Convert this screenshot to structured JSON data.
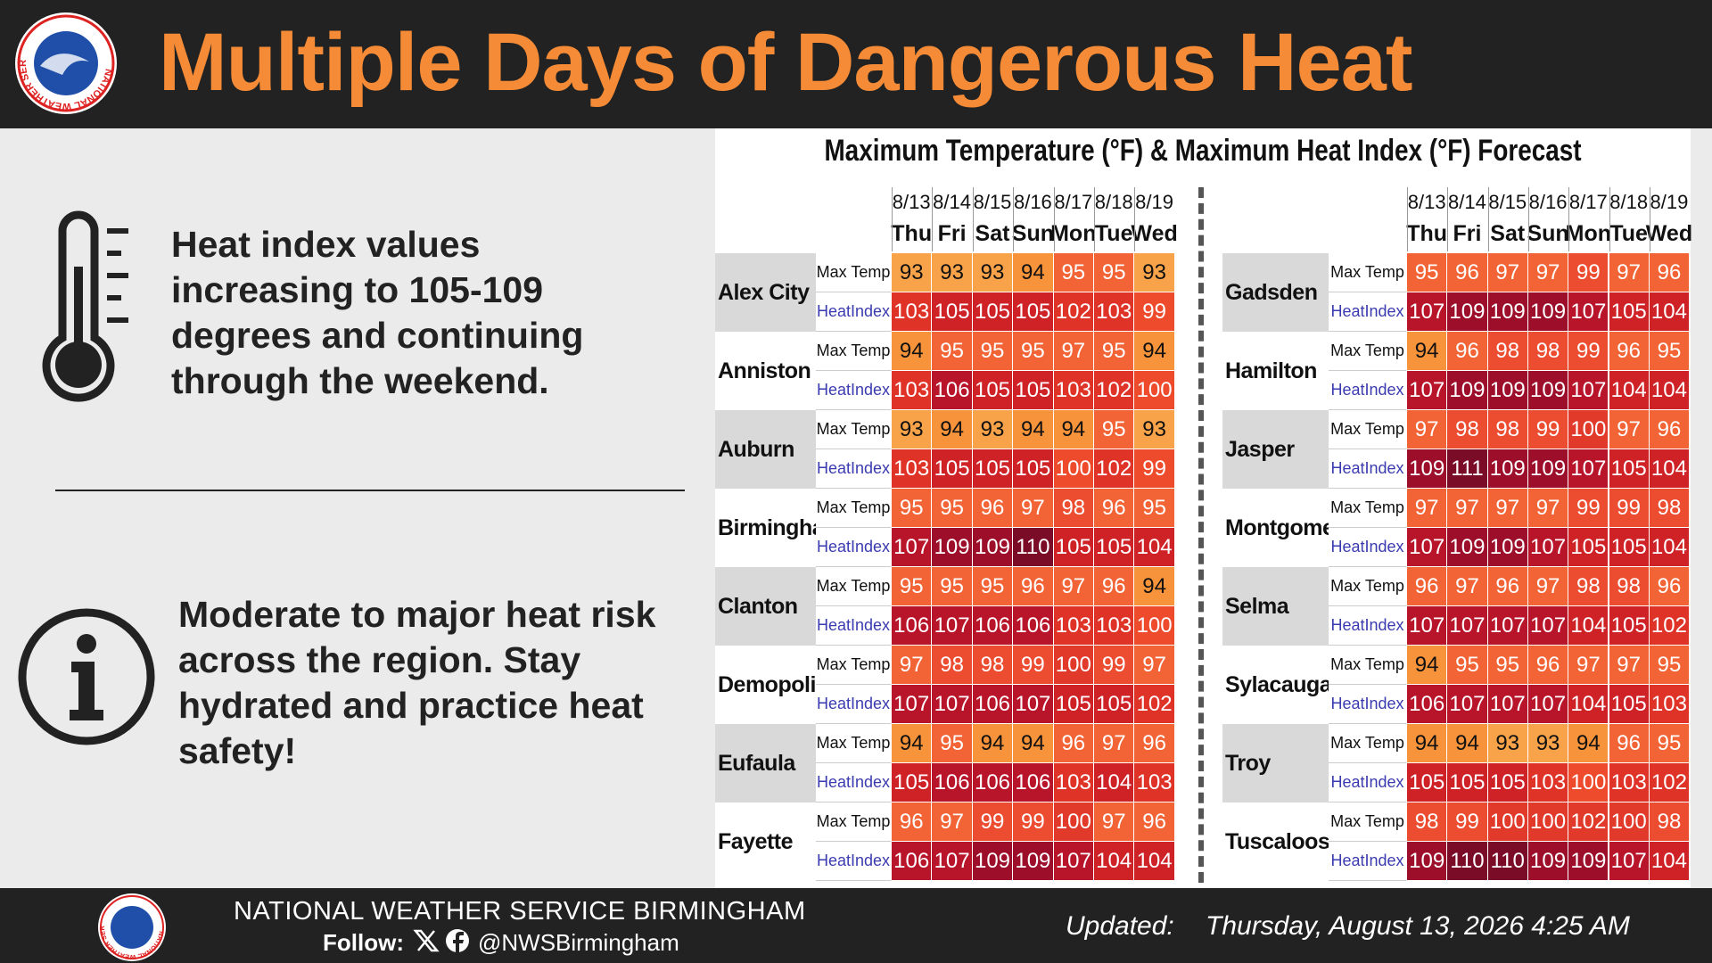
{
  "header": {
    "title": "Multiple Days of Dangerous Heat",
    "logo_text": "NATIONAL WEATHER SERVICE"
  },
  "panel": {
    "message_1": "Heat index values increasing to 105-109 degrees and continuing through the weekend.",
    "message_2": "Moderate to major heat risk across the region. Stay hydrated and practice heat safety!"
  },
  "table": {
    "title": "Maximum Temperature (°F) & Maximum Heat Index (°F) Forecast",
    "dates": [
      "8/13",
      "8/14",
      "8/15",
      "8/16",
      "8/17",
      "8/18",
      "8/19"
    ],
    "days": [
      "Thu",
      "Fri",
      "Sat",
      "Sun",
      "Mon",
      "Tue",
      "Wed"
    ],
    "row_labels": [
      "Max Temp",
      "HeatIndex"
    ],
    "cities": [
      {
        "name": "Alex City",
        "max_temp": [
          93,
          93,
          93,
          94,
          95,
          95,
          93
        ],
        "heat_index": [
          103,
          105,
          105,
          105,
          102,
          103,
          99
        ]
      },
      {
        "name": "Anniston",
        "max_temp": [
          94,
          95,
          95,
          95,
          97,
          95,
          94
        ],
        "heat_index": [
          103,
          106,
          105,
          105,
          103,
          102,
          100
        ]
      },
      {
        "name": "Auburn",
        "max_temp": [
          93,
          94,
          93,
          94,
          94,
          95,
          93
        ],
        "heat_index": [
          103,
          105,
          105,
          105,
          100,
          102,
          99
        ]
      },
      {
        "name": "Birmingham",
        "max_temp": [
          95,
          95,
          96,
          97,
          98,
          96,
          95
        ],
        "heat_index": [
          107,
          109,
          109,
          110,
          105,
          105,
          104
        ]
      },
      {
        "name": "Clanton",
        "max_temp": [
          95,
          95,
          95,
          96,
          97,
          96,
          94
        ],
        "heat_index": [
          106,
          107,
          106,
          106,
          103,
          103,
          100
        ]
      },
      {
        "name": "Demopolis",
        "max_temp": [
          97,
          98,
          98,
          99,
          100,
          99,
          97
        ],
        "heat_index": [
          107,
          107,
          106,
          107,
          105,
          105,
          102
        ]
      },
      {
        "name": "Eufaula",
        "max_temp": [
          94,
          95,
          94,
          94,
          96,
          97,
          96
        ],
        "heat_index": [
          105,
          106,
          106,
          106,
          103,
          104,
          103
        ]
      },
      {
        "name": "Fayette",
        "max_temp": [
          96,
          97,
          99,
          99,
          100,
          97,
          96
        ],
        "heat_index": [
          106,
          107,
          109,
          109,
          107,
          104,
          104
        ]
      },
      {
        "name": "Gadsden",
        "max_temp": [
          95,
          96,
          97,
          97,
          99,
          97,
          96
        ],
        "heat_index": [
          107,
          109,
          109,
          109,
          107,
          105,
          104
        ]
      },
      {
        "name": "Hamilton",
        "max_temp": [
          94,
          96,
          98,
          98,
          99,
          96,
          95
        ],
        "heat_index": [
          107,
          109,
          109,
          109,
          107,
          104,
          104
        ]
      },
      {
        "name": "Jasper",
        "max_temp": [
          97,
          98,
          98,
          99,
          100,
          97,
          96
        ],
        "heat_index": [
          109,
          111,
          109,
          109,
          107,
          105,
          104
        ]
      },
      {
        "name": "Montgomery",
        "max_temp": [
          97,
          97,
          97,
          97,
          99,
          99,
          98
        ],
        "heat_index": [
          107,
          109,
          109,
          107,
          105,
          105,
          104
        ]
      },
      {
        "name": "Selma",
        "max_temp": [
          96,
          97,
          96,
          97,
          98,
          98,
          96
        ],
        "heat_index": [
          107,
          107,
          107,
          107,
          104,
          105,
          102
        ]
      },
      {
        "name": "Sylacauga",
        "max_temp": [
          94,
          95,
          95,
          96,
          97,
          97,
          95
        ],
        "heat_index": [
          106,
          107,
          107,
          107,
          104,
          105,
          103
        ]
      },
      {
        "name": "Troy",
        "max_temp": [
          94,
          94,
          93,
          93,
          94,
          96,
          95
        ],
        "heat_index": [
          105,
          105,
          105,
          103,
          100,
          103,
          102
        ]
      },
      {
        "name": "Tuscaloosa",
        "max_temp": [
          98,
          99,
          100,
          100,
          102,
          100,
          98
        ],
        "heat_index": [
          109,
          110,
          110,
          109,
          109,
          107,
          104
        ]
      }
    ]
  },
  "footer": {
    "office": "NATIONAL WEATHER SERVICE BIRMINGHAM",
    "follow_label": "Follow:",
    "handle": "@NWSBirmingham",
    "updated_label": "Updated:",
    "updated": "Thursday, August 13, 2026 4:25 AM"
  }
}
